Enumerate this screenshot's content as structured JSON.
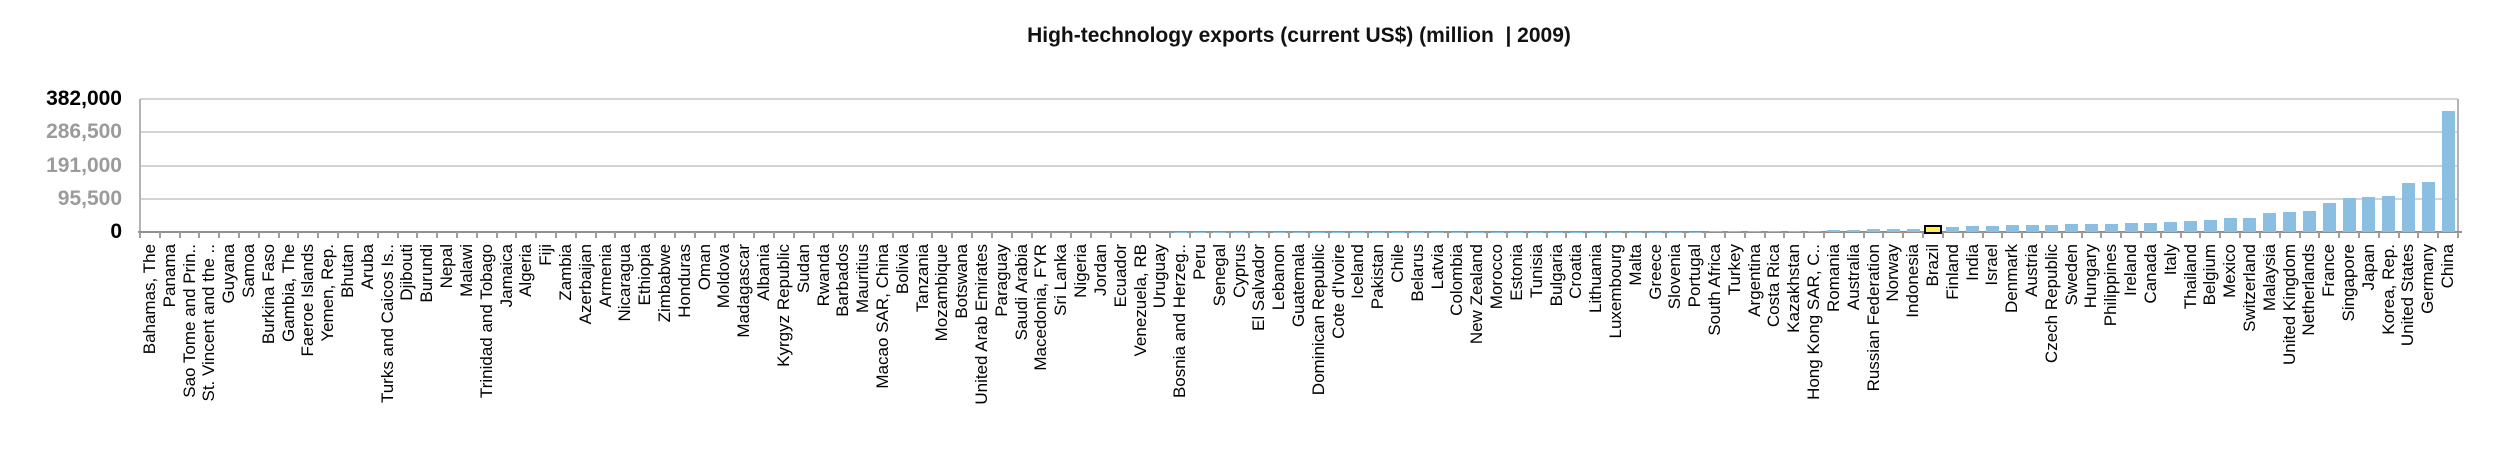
{
  "chart_data": {
    "type": "bar",
    "title": "High-technology exports (current US$) (million  | 2009)",
    "xlabel": "",
    "ylabel": "",
    "unit": "current US$ (million)",
    "year": "2009",
    "ylim": [
      0,
      382000
    ],
    "yticks": [
      0,
      95500,
      191000,
      286500,
      382000
    ],
    "ytick_labels": [
      "0",
      "95,500",
      "191,000",
      "286,500",
      "382,000"
    ],
    "grid": true,
    "legend_position": "none",
    "bar_color": "#8abfe2",
    "highlight": {
      "country": "Brazil",
      "index": 90,
      "fill": "#fff04d",
      "border": "#000000"
    },
    "categories": [
      "Bahamas, The",
      "Panama",
      "Sao Tome and Prin..",
      "St. Vincent and the ..",
      "Guyana",
      "Samoa",
      "Burkina Faso",
      "Gambia, The",
      "Faeroe Islands",
      "Yemen, Rep.",
      "Bhutan",
      "Aruba",
      "Turks and Caicos Is..",
      "Djibouti",
      "Burundi",
      "Nepal",
      "Malawi",
      "Trinidad and Tobago",
      "Jamaica",
      "Algeria",
      "Fiji",
      "Zambia",
      "Azerbaijan",
      "Armenia",
      "Nicaragua",
      "Ethiopia",
      "Zimbabwe",
      "Honduras",
      "Oman",
      "Moldova",
      "Madagascar",
      "Albania",
      "Kyrgyz Republic",
      "Sudan",
      "Rwanda",
      "Barbados",
      "Mauritius",
      "Macao SAR, China",
      "Bolivia",
      "Tanzania",
      "Mozambique",
      "Botswana",
      "United Arab Emirates",
      "Paraguay",
      "Saudi Arabia",
      "Macedonia, FYR",
      "Sri Lanka",
      "Nigeria",
      "Jordan",
      "Ecuador",
      "Venezuela, RB",
      "Uruguay",
      "Bosnia and Herzeg..",
      "Peru",
      "Senegal",
      "Cyprus",
      "El Salvador",
      "Lebanon",
      "Guatemala",
      "Dominican Republic",
      "Cote d'Ivoire",
      "Iceland",
      "Pakistan",
      "Chile",
      "Belarus",
      "Latvia",
      "Colombia",
      "New Zealand",
      "Morocco",
      "Estonia",
      "Tunisia",
      "Bulgaria",
      "Croatia",
      "Lithuania",
      "Luxembourg",
      "Malta",
      "Greece",
      "Slovenia",
      "Portugal",
      "South Africa",
      "Turkey",
      "Argentina",
      "Costa Rica",
      "Kazakhstan",
      "Hong Kong SAR, C..",
      "Romania",
      "Australia",
      "Russian Federation",
      "Norway",
      "Indonesia",
      "Brazil",
      "Finland",
      "India",
      "Israel",
      "Denmark",
      "Austria",
      "Czech Republic",
      "Sweden",
      "Hungary",
      "Philippines",
      "Ireland",
      "Canada",
      "Italy",
      "Thailand",
      "Belgium",
      "Mexico",
      "Switzerland",
      "Malaysia",
      "United Kingdom",
      "Netherlands",
      "France",
      "Singapore",
      "Japan",
      "Korea, Rep.",
      "United States",
      "Germany",
      "China"
    ],
    "values": [
      0.4,
      0.9,
      1.4,
      1.9,
      2.4,
      3,
      3.5,
      4,
      5,
      6,
      7,
      8,
      9,
      10,
      11,
      12,
      14,
      16,
      18,
      20,
      22,
      24,
      26,
      28,
      31,
      34,
      37,
      40,
      44,
      48,
      52,
      56,
      61,
      66,
      71,
      77,
      83,
      89,
      96,
      103,
      110,
      118,
      126,
      135,
      144,
      153,
      163,
      173,
      184,
      195,
      207,
      219,
      232,
      245,
      259,
      273,
      288,
      304,
      320,
      337,
      355,
      373,
      392,
      412,
      433,
      455,
      478,
      502,
      527,
      553,
      580,
      608,
      637,
      667,
      698,
      730,
      763,
      797,
      832,
      1600,
      1900,
      2100,
      2400,
      2800,
      3500,
      5500,
      7000,
      8000,
      8800,
      9500,
      13500,
      15000,
      16500,
      18000,
      19000,
      20000,
      21000,
      21800,
      22500,
      23500,
      25000,
      26500,
      28000,
      31000,
      34000,
      39000,
      40500,
      54000,
      58000,
      61000,
      84000,
      97000,
      100000,
      104000,
      141500,
      142400,
      348000
    ]
  }
}
